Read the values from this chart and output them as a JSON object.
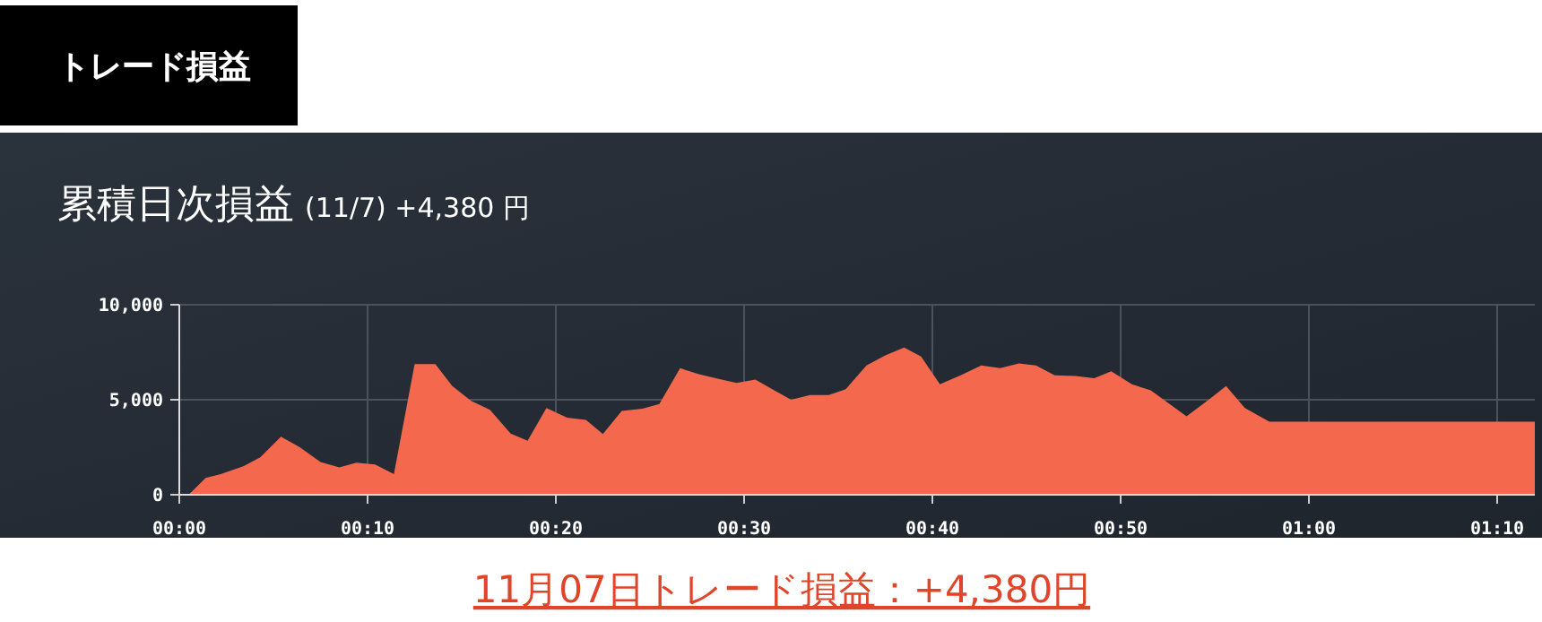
{
  "chart_data": {
    "type": "area",
    "title": "累積日次損益",
    "subtitle": "(11/7) +4,380 円",
    "annotations": [
      "トレード損益",
      "11月07日トレード損益：+4,380円"
    ],
    "x": [
      0.5,
      1.4,
      2.2,
      3.4,
      4.3,
      5.4,
      6.4,
      7.5,
      8.5,
      9.4,
      10.4,
      11.4,
      12.5,
      13.6,
      14.5,
      15.5,
      16.5,
      17.6,
      18.5,
      19.5,
      20.6,
      21.6,
      22.5,
      23.5,
      24.6,
      25.5,
      26.6,
      27.6,
      28.7,
      29.6,
      30.6,
      31.6,
      32.5,
      33.5,
      34.5,
      35.4,
      36.5,
      37.5,
      38.5,
      39.4,
      40.4,
      41.5,
      42.6,
      43.6,
      44.6,
      45.5,
      46.5,
      47.6,
      48.6,
      49.5,
      50.6,
      51.6,
      52.6,
      53.5,
      54.6,
      55.6,
      56.6,
      57.9,
      72
    ],
    "values": [
      0,
      880,
      1090,
      1500,
      1970,
      3060,
      2500,
      1720,
      1440,
      1690,
      1590,
      1090,
      6880,
      6880,
      5720,
      4940,
      4470,
      3220,
      2840,
      4560,
      4060,
      3940,
      3190,
      4410,
      4530,
      4780,
      6660,
      6340,
      6090,
      5880,
      6060,
      5500,
      5000,
      5250,
      5250,
      5560,
      6810,
      7340,
      7750,
      7280,
      5810,
      6280,
      6810,
      6660,
      6910,
      6810,
      6280,
      6250,
      6130,
      6500,
      5810,
      5500,
      4780,
      4130,
      4940,
      5720,
      4560,
      3850,
      3850
    ],
    "color": "#f4694e",
    "xlim": [
      0,
      72
    ],
    "ylim": [
      0,
      10000
    ],
    "xticks": [
      {
        "value": 0,
        "label": "00:00"
      },
      {
        "value": 10,
        "label": "00:10"
      },
      {
        "value": 20,
        "label": "00:20"
      },
      {
        "value": 30,
        "label": "00:30"
      },
      {
        "value": 40,
        "label": "00:40"
      },
      {
        "value": 50,
        "label": "00:50"
      },
      {
        "value": 60,
        "label": "01:00"
      },
      {
        "value": 70,
        "label": "01:10"
      }
    ],
    "yticks": [
      0,
      {
        "value": 5000,
        "label": "5,000"
      },
      {
        "value": 10000,
        "label": "10,000"
      }
    ],
    "grid": true
  }
}
